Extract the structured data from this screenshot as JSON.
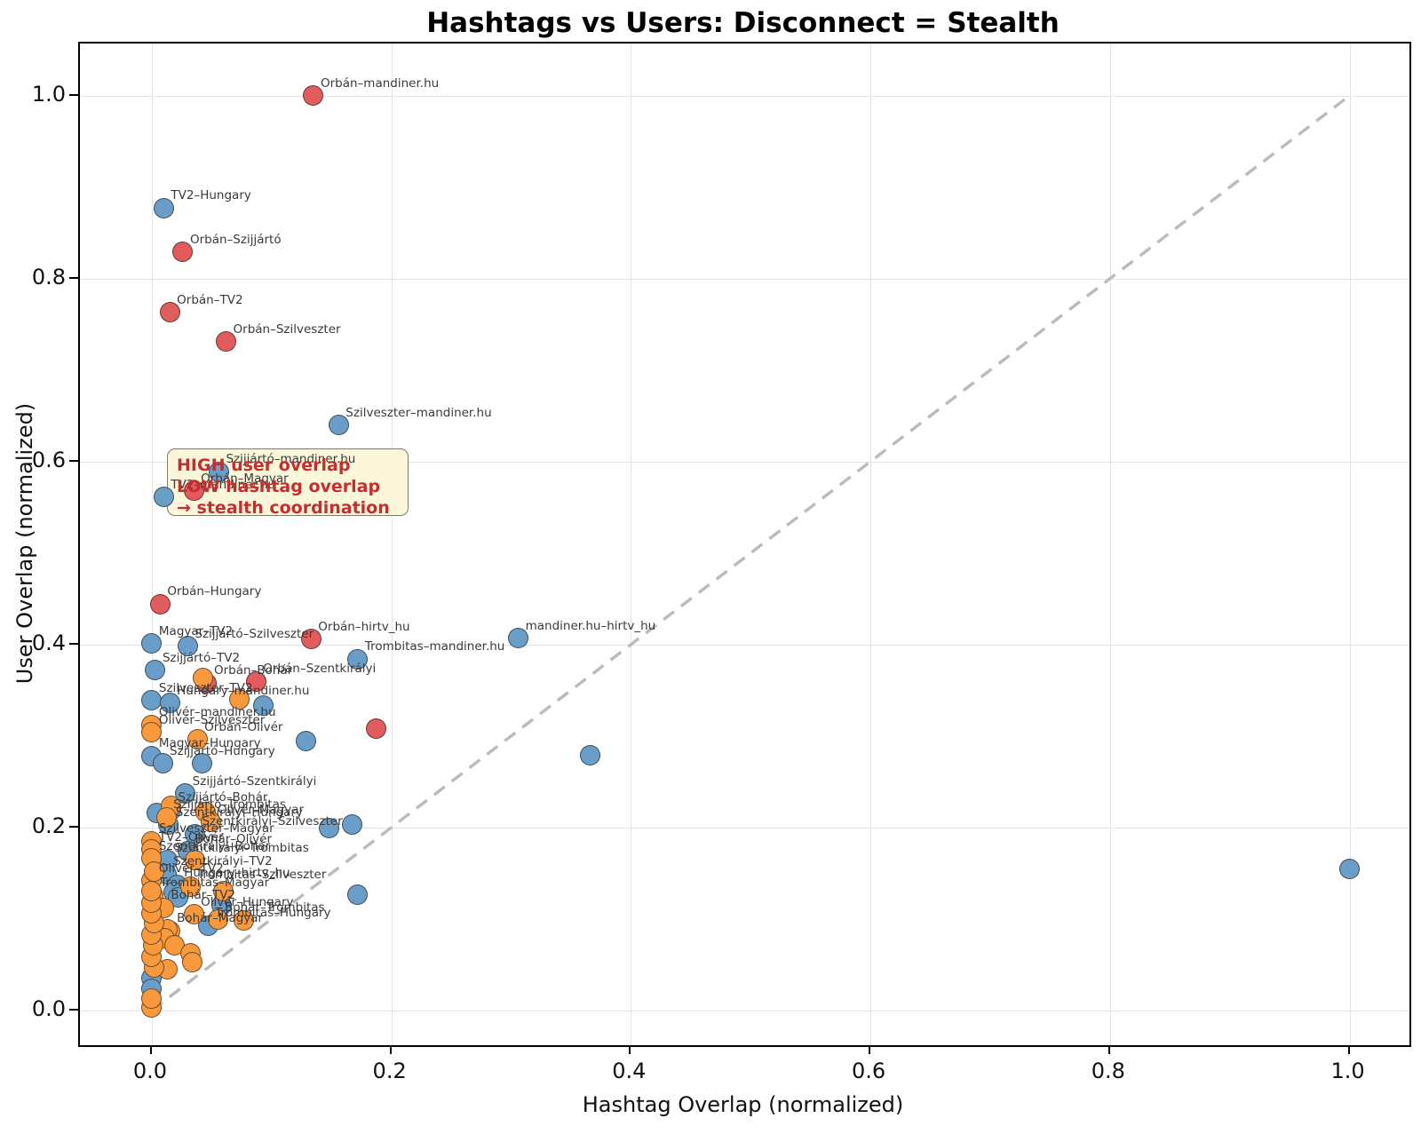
{
  "figure": {
    "title": "Hashtags vs Users: Disconnect = Stealth",
    "xlabel": "Hashtag Overlap (normalized)",
    "ylabel": "User Overlap (normalized)"
  },
  "annotation": {
    "line1": "HIGH user overlap",
    "line2": "LOW hashtag overlap",
    "line3": "→ stealth coordination",
    "text_color": "#c72c2e",
    "bg_color": "#fcf7da"
  },
  "chart_data": {
    "type": "scatter",
    "title": "Hashtags vs Users: Disconnect = Stealth",
    "xlabel": "Hashtag Overlap (normalized)",
    "ylabel": "User Overlap (normalized)",
    "xlim": [
      -0.06,
      1.05
    ],
    "ylim": [
      -0.038,
      1.057
    ],
    "x_ticks": [
      0.0,
      0.2,
      0.4,
      0.6,
      0.8,
      1.0
    ],
    "y_ticks": [
      0.0,
      0.2,
      0.4,
      0.6,
      0.8,
      1.0
    ],
    "grid": true,
    "reference_line": {
      "type": "diagonal y=x",
      "from": [
        0,
        0
      ],
      "to": [
        1,
        1
      ],
      "style": "dashed",
      "color": "#bcbcbc"
    },
    "series": [
      {
        "name": "red-series",
        "color": "#e25c5e",
        "points": [
          {
            "x": 0.135,
            "y": 1.0,
            "label": "Orbán–mandiner.hu"
          },
          {
            "x": 0.026,
            "y": 0.829,
            "label": "Orbán–Szijjártó"
          },
          {
            "x": 0.015,
            "y": 0.763,
            "label": "Orbán–TV2"
          },
          {
            "x": 0.062,
            "y": 0.731,
            "label": "Orbán–Szilveszter"
          },
          {
            "x": 0.035,
            "y": 0.568,
            "label": "Orbán–Magyar"
          },
          {
            "x": 0.007,
            "y": 0.444,
            "label": "Orbán–Hungary"
          },
          {
            "x": 0.133,
            "y": 0.406,
            "label": "Orbán–hirtv_hu"
          },
          {
            "x": 0.046,
            "y": 0.358,
            "label": "Orbán–Bohár"
          },
          {
            "x": 0.087,
            "y": 0.36,
            "label": "Orbán–Szentkirályi"
          },
          {
            "x": 0.187,
            "y": 0.308,
            "label": ""
          }
        ]
      },
      {
        "name": "blue-series",
        "color": "#6a9ec9",
        "points": [
          {
            "x": 0.01,
            "y": 0.877,
            "label": "TV2–Hungary"
          },
          {
            "x": 0.156,
            "y": 0.64,
            "label": "Szilveszter–mandiner.hu"
          },
          {
            "x": 0.056,
            "y": 0.589,
            "label": "Szijjártó–mandiner.hu"
          },
          {
            "x": 0.01,
            "y": 0.561,
            "label": "TV2–mandiner.hu"
          },
          {
            "x": 0.0,
            "y": 0.401,
            "label": "Magyar–TV2"
          },
          {
            "x": 0.03,
            "y": 0.398,
            "label": "Szijjártó–Szilveszter"
          },
          {
            "x": 0.306,
            "y": 0.407,
            "label": "mandiner.hu–hirtv_hu"
          },
          {
            "x": 0.172,
            "y": 0.384,
            "label": "Trombitas–mandiner.hu"
          },
          {
            "x": 0.003,
            "y": 0.372,
            "label": "Szijjártó–TV2"
          },
          {
            "x": 0.0,
            "y": 0.339,
            "label": "Szilveszter–TV2"
          },
          {
            "x": 0.015,
            "y": 0.336,
            "label": "Hungary–mandiner.hu"
          },
          {
            "x": 0.093,
            "y": 0.333,
            "label": ""
          },
          {
            "x": 0.129,
            "y": 0.294,
            "label": ""
          },
          {
            "x": 0.366,
            "y": 0.279,
            "label": ""
          },
          {
            "x": 1.0,
            "y": 0.155,
            "label": ""
          },
          {
            "x": 0.0,
            "y": 0.278,
            "label": "Magyar–Hungary"
          },
          {
            "x": 0.009,
            "y": 0.27,
            "label": "Szijjártó–Hungary"
          },
          {
            "x": 0.042,
            "y": 0.27,
            "label": ""
          },
          {
            "x": 0.028,
            "y": 0.237,
            "label": "Szijjártó–Szentkirályi"
          },
          {
            "x": 0.016,
            "y": 0.219,
            "label": "Szijjártó–Bohár"
          },
          {
            "x": 0.004,
            "y": 0.216,
            "label": ""
          },
          {
            "x": 0.148,
            "y": 0.199,
            "label": ""
          },
          {
            "x": 0.167,
            "y": 0.203,
            "label": ""
          },
          {
            "x": 0.014,
            "y": 0.203,
            "label": "Szentkirályi–Hungary"
          },
          {
            "x": 0.036,
            "y": 0.193,
            "label": "Szentkirályi–Szilveszter"
          },
          {
            "x": 0.03,
            "y": 0.174,
            "label": "Bohár–Olivér"
          },
          {
            "x": 0.013,
            "y": 0.164,
            "label": "Szentkirályi–Trombitas"
          },
          {
            "x": 0.012,
            "y": 0.149,
            "label": "Szentkirályi–TV2"
          },
          {
            "x": 0.021,
            "y": 0.137,
            "label": "Hungary–hirtv_hu"
          },
          {
            "x": 0.018,
            "y": 0.129,
            "label": ""
          },
          {
            "x": 0.047,
            "y": 0.093,
            "label": "Trombitas–Hungary"
          },
          {
            "x": 0.172,
            "y": 0.127,
            "label": ""
          },
          {
            "x": 0.022,
            "y": 0.124,
            "label": ""
          },
          {
            "x": 0.058,
            "y": 0.115,
            "label": ""
          },
          {
            "x": 0.0,
            "y": 0.035,
            "label": ""
          },
          {
            "x": 0.0,
            "y": 0.024,
            "label": ""
          }
        ]
      },
      {
        "name": "orange-series",
        "color": "#f9993d",
        "points": [
          {
            "x": 0.043,
            "y": 0.363,
            "label": ""
          },
          {
            "x": 0.073,
            "y": 0.34,
            "label": ""
          },
          {
            "x": 0.0,
            "y": 0.312,
            "label": "Olivér–mandiner.hu"
          },
          {
            "x": 0.0,
            "y": 0.304,
            "label": "Olivér–Szilveszter"
          },
          {
            "x": 0.038,
            "y": 0.296,
            "label": "Orbán–Olivér"
          },
          {
            "x": 0.016,
            "y": 0.224,
            "label": ""
          },
          {
            "x": 0.045,
            "y": 0.217,
            "label": ""
          },
          {
            "x": 0.012,
            "y": 0.211,
            "label": "Szijjártó–Trombitas"
          },
          {
            "x": 0.049,
            "y": 0.206,
            "label": "Olivér–Magyar"
          },
          {
            "x": 0.0,
            "y": 0.185,
            "label": "Szilveszter–Magyar"
          },
          {
            "x": 0.0,
            "y": 0.176,
            "label": "TV2–Olivér"
          },
          {
            "x": 0.0,
            "y": 0.166,
            "label": "Szentkirályi–Bohár"
          },
          {
            "x": 0.036,
            "y": 0.164,
            "label": ""
          },
          {
            "x": 0.0,
            "y": 0.142,
            "label": "Olivér–TV2"
          },
          {
            "x": 0.032,
            "y": 0.135,
            "label": "Trombitas–Szilveszter"
          },
          {
            "x": 0.001,
            "y": 0.126,
            "label": "Trombitas–Magyar"
          },
          {
            "x": 0.01,
            "y": 0.112,
            "label": "Bohár–TV2"
          },
          {
            "x": 0.035,
            "y": 0.105,
            "label": "Olivér–Hungary"
          },
          {
            "x": 0.055,
            "y": 0.099,
            "label": "Bohár–Trombitas"
          },
          {
            "x": 0.015,
            "y": 0.087,
            "label": "Bohár–Magyar"
          },
          {
            "x": 0.077,
            "y": 0.098,
            "label": ""
          },
          {
            "x": 0.06,
            "y": 0.13,
            "label": ""
          },
          {
            "x": 0.013,
            "y": 0.089,
            "label": ""
          },
          {
            "x": 0.011,
            "y": 0.079,
            "label": ""
          },
          {
            "x": 0.019,
            "y": 0.071,
            "label": ""
          },
          {
            "x": 0.032,
            "y": 0.062,
            "label": ""
          },
          {
            "x": 0.034,
            "y": 0.053,
            "label": ""
          },
          {
            "x": 0.013,
            "y": 0.045,
            "label": ""
          },
          {
            "x": 0.0,
            "y": 0.003,
            "label": ""
          },
          {
            "x": 0.0,
            "y": 0.013,
            "label": ""
          },
          {
            "x": 0.002,
            "y": 0.047,
            "label": ""
          },
          {
            "x": 0.0,
            "y": 0.059,
            "label": ""
          },
          {
            "x": 0.001,
            "y": 0.071,
            "label": ""
          },
          {
            "x": 0.0,
            "y": 0.083,
            "label": ""
          },
          {
            "x": 0.002,
            "y": 0.095,
            "label": ""
          },
          {
            "x": 0.0,
            "y": 0.106,
            "label": ""
          },
          {
            "x": 0.0,
            "y": 0.118,
            "label": ""
          },
          {
            "x": 0.0,
            "y": 0.13,
            "label": ""
          },
          {
            "x": 0.002,
            "y": 0.152,
            "label": ""
          }
        ]
      }
    ],
    "annotation_box": {
      "lines": [
        "HIGH user overlap",
        "LOW hashtag overlap",
        "→ stealth coordination"
      ],
      "anchor_data_xy": [
        0.012,
        0.56
      ]
    }
  }
}
